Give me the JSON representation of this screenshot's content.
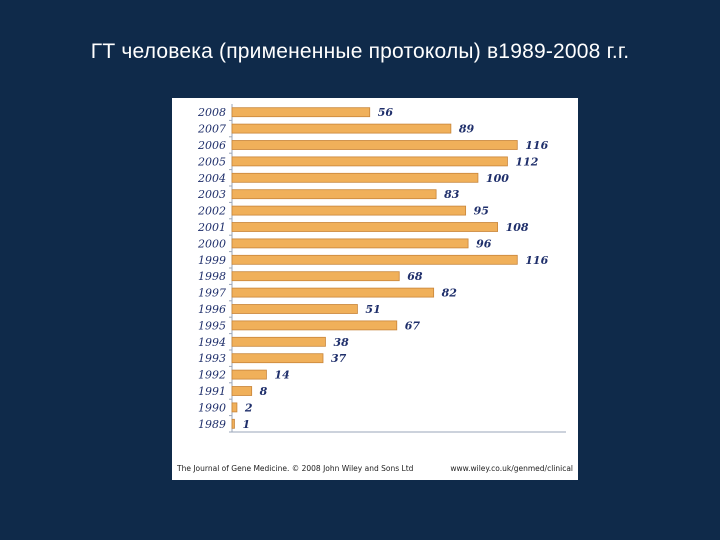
{
  "slide": {
    "title": "ГТ  человека (примененные протоколы) в1989-2008 г.г."
  },
  "figure": {
    "footer_left": "The Journal of Gene Medicine. © 2008 John Wiley and Sons Ltd",
    "footer_right": "www.wiley.co.uk/genmed/clinical"
  },
  "colors": {
    "background": "#0f2a4a",
    "bar": "#f0b05a",
    "bar_edge": "#c8853a",
    "label": "#1f2f6b"
  },
  "chart_data": {
    "type": "bar",
    "orientation": "horizontal",
    "categories": [
      "2008",
      "2007",
      "2006",
      "2005",
      "2004",
      "2003",
      "2002",
      "2001",
      "2000",
      "1999",
      "1998",
      "1997",
      "1996",
      "1995",
      "1994",
      "1993",
      "1992",
      "1991",
      "1990",
      "1989"
    ],
    "values": [
      56,
      89,
      116,
      112,
      100,
      83,
      95,
      108,
      96,
      116,
      68,
      82,
      51,
      67,
      38,
      37,
      14,
      8,
      2,
      1
    ],
    "title": "",
    "xlabel": "",
    "ylabel": "",
    "xlim": [
      0,
      135
    ],
    "grid": false,
    "legend": "none"
  }
}
